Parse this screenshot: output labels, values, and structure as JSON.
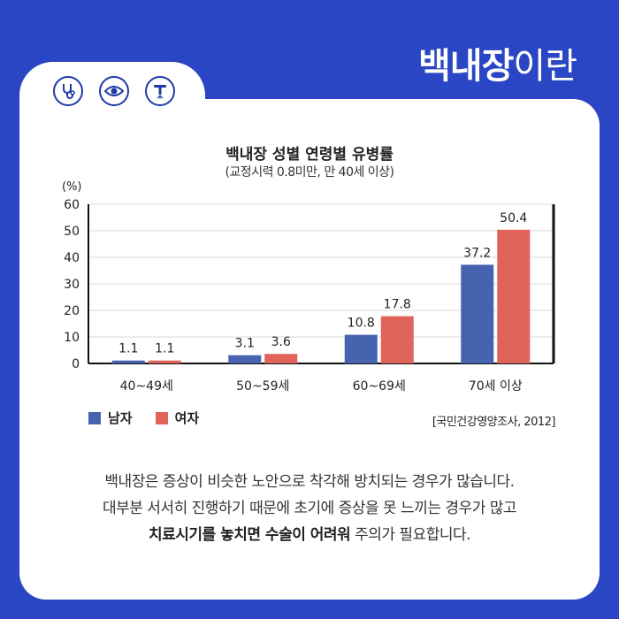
{
  "header": {
    "title_bold": "백내장",
    "title_light": "이란"
  },
  "icons": [
    "stethoscope-icon",
    "eye-icon",
    "surgical-tool-icon"
  ],
  "chart_data": {
    "type": "bar",
    "title": "백내장 성별 연령별 유병률",
    "subtitle": "(교정시력 0.8미만, 만 40세 이상)",
    "ylabel": "(%)",
    "ylim": [
      0,
      60
    ],
    "yticks": [
      0,
      10,
      20,
      30,
      40,
      50,
      60
    ],
    "grid": true,
    "categories": [
      "40~49세",
      "50~59세",
      "60~69세",
      "70세 이상"
    ],
    "series": [
      {
        "name": "남자",
        "color": "#4763b0",
        "values": [
          1.1,
          3.1,
          10.8,
          37.2
        ],
        "labels": [
          "1.1",
          "3.1",
          "10.8",
          "37.2"
        ]
      },
      {
        "name": "여자",
        "color": "#e0645a",
        "values": [
          1.1,
          3.6,
          17.8,
          50.4
        ],
        "labels": [
          "1.1",
          "3.6",
          "17.8",
          "50.4"
        ]
      }
    ],
    "legend": "bottom-left",
    "source": "[국민건강영양조사, 2012]"
  },
  "description": {
    "line1": "백내장은 증상이 비슷한 노안으로 착각해 방치되는 경우가 많습니다.",
    "line2": "대부분 서서히 진행하기 때문에 초기에 증상을 못 느끼는 경우가 많고",
    "line3_bold": "치료시기를 놓치면 수술이 어려워",
    "line3_rest": " 주의가 필요합니다."
  }
}
